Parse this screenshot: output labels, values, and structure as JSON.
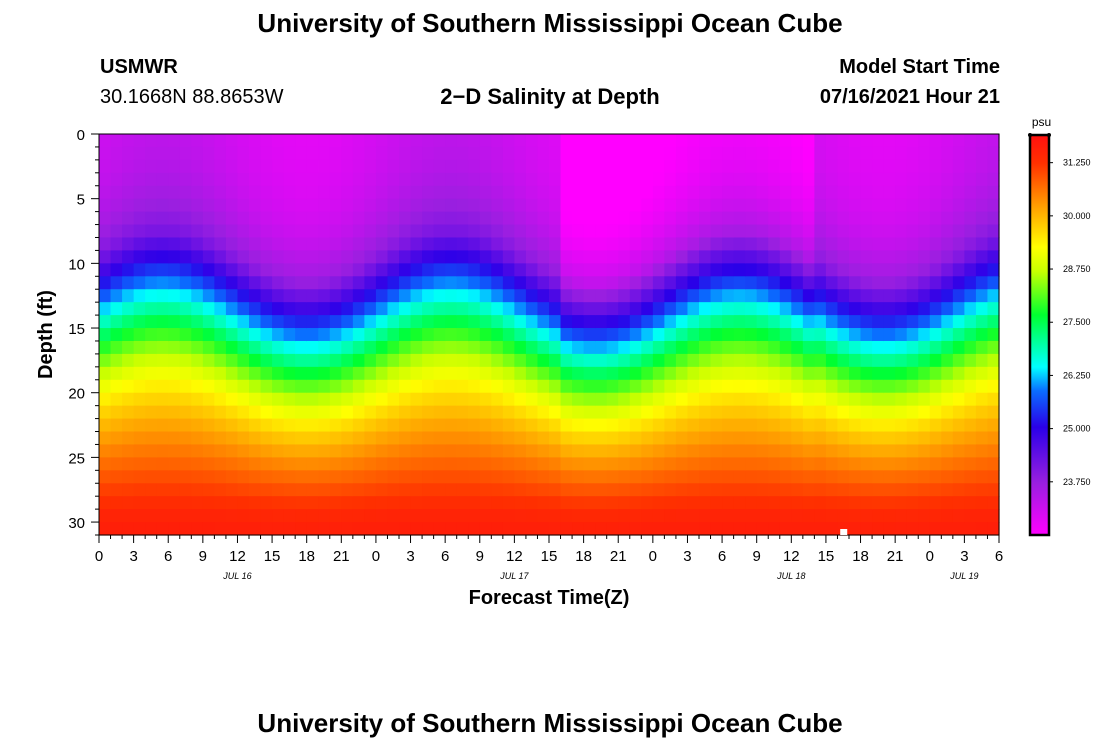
{
  "header": {
    "title": "University of Southern Mississippi Ocean Cube",
    "station": "USMWR",
    "coordinates": "30.1668N  88.8653W",
    "subtitle": "2−D Salinity at Depth",
    "model_start_label": "Model Start Time",
    "model_start_value": "07/16/2021 Hour 21"
  },
  "footer": {
    "title": "University of Southern Mississippi Ocean Cube"
  },
  "chart_data": {
    "type": "heatmap",
    "title": "2−D Salinity at Depth",
    "xlabel": "Forecast Time(Z)",
    "ylabel": "Depth (ft)",
    "x_range_hours": [
      0,
      78
    ],
    "x_ticks": [
      "0",
      "3",
      "6",
      "9",
      "12",
      "15",
      "18",
      "21",
      "0",
      "3",
      "6",
      "9",
      "12",
      "15",
      "18",
      "21",
      "0",
      "3",
      "6",
      "9",
      "12",
      "15",
      "18",
      "21",
      "0",
      "3",
      "6"
    ],
    "x_tick_step_hours": 3,
    "date_labels": [
      {
        "text": "JUL 16",
        "hour": 12
      },
      {
        "text": "JUL 17",
        "hour": 36
      },
      {
        "text": "JUL 18",
        "hour": 60
      },
      {
        "text": "JUL 19",
        "hour": 75
      }
    ],
    "y_range": [
      0,
      31
    ],
    "y_inverted": true,
    "y_ticks": [
      0,
      5,
      10,
      15,
      20,
      25,
      30
    ],
    "colorbar": {
      "unit": "psu",
      "range": [
        22.5,
        31.9
      ],
      "tick_labels": [
        "31.250",
        "30.000",
        "28.750",
        "27.500",
        "26.250",
        "25.000",
        "23.750"
      ],
      "tick_values": [
        31.25,
        30.0,
        28.75,
        27.5,
        26.25,
        25.0,
        23.75
      ],
      "colors": [
        "#ff00ff",
        "#9a1fe0",
        "#2a00e8",
        "#0a6cff",
        "#00ffff",
        "#00ff30",
        "#c8ff00",
        "#ffff00",
        "#ffa000",
        "#ff3000",
        "#ff1010"
      ],
      "color_stops": [
        0.0,
        0.13,
        0.27,
        0.36,
        0.42,
        0.55,
        0.66,
        0.72,
        0.82,
        0.93,
        1.0
      ]
    },
    "salinity_profile": {
      "surface_psu": 23.2,
      "surface_psu_trough": 22.8,
      "bottom_psu": 31.6,
      "halocline_center_ft_at_trough": 11.0,
      "halocline_center_ft_at_crest": 9.0,
      "halocline_center_ft_extremes": [
        12.5,
        8.5
      ],
      "oscillation_period_hours": 25,
      "crest_hours": [
        5.5,
        30.5,
        55.5
      ],
      "halocline_thickness_ft": 7.0
    },
    "markers": [
      {
        "hour": 64.5,
        "depth": 31,
        "label": ""
      }
    ]
  }
}
